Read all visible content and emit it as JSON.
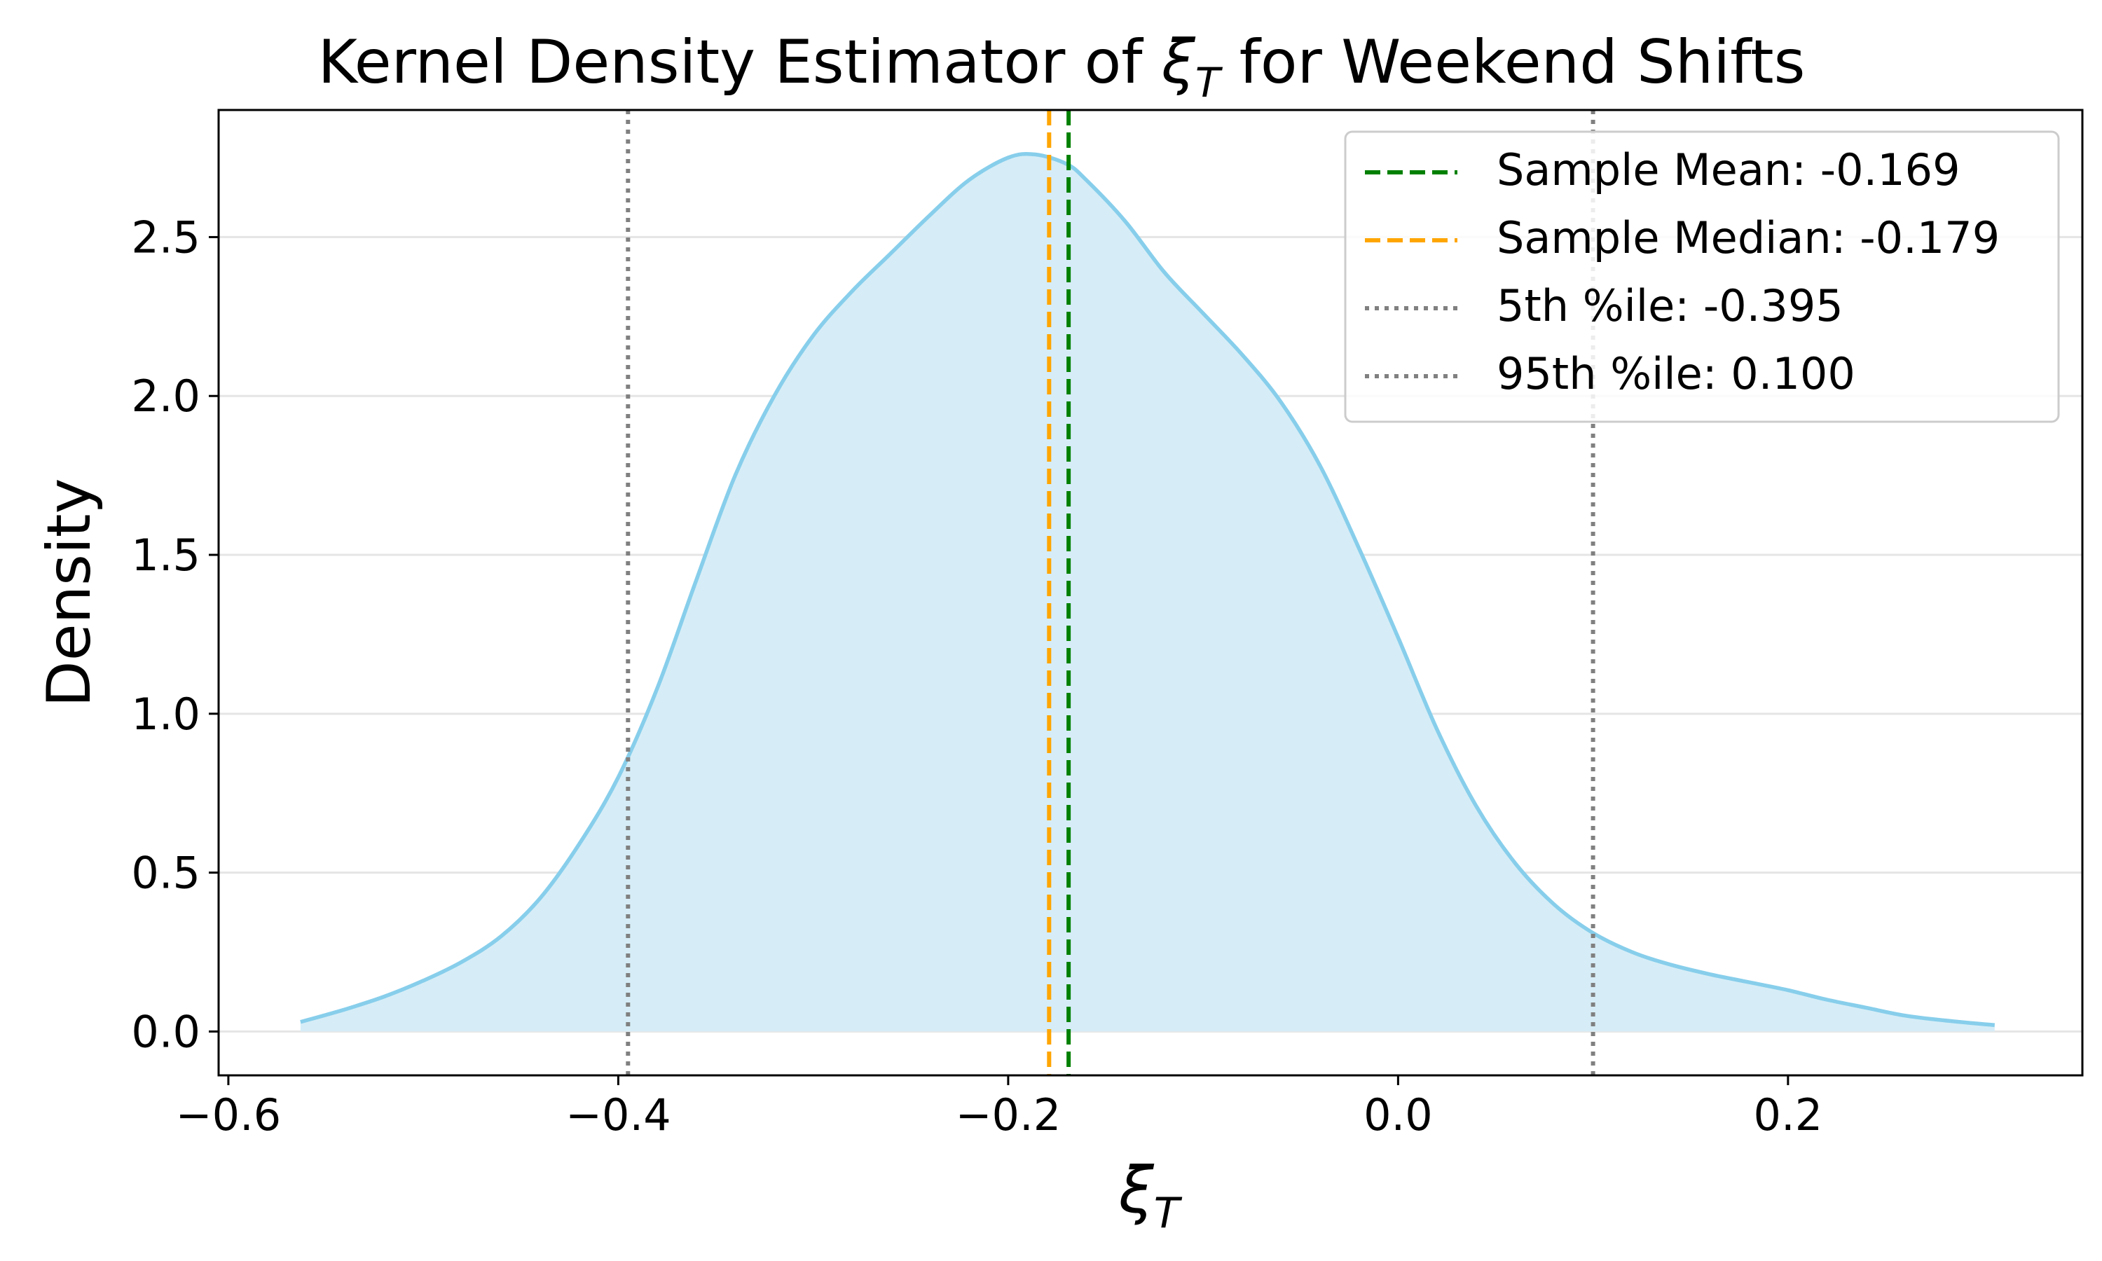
{
  "chart_data": {
    "type": "area",
    "title": {
      "prefix": "Kernel Density Estimator of ",
      "symbol": "ξ",
      "subscript": "T",
      "suffix": " for Weekend Shifts"
    },
    "xlabel": {
      "symbol": "ξ",
      "subscript": "T"
    },
    "ylabel": "Density",
    "xlim": [
      -0.605,
      0.351
    ],
    "ylim": [
      -0.138,
      2.9
    ],
    "xticks": [
      -0.6,
      -0.4,
      -0.2,
      0.0,
      0.2
    ],
    "xtick_labels": [
      "−0.6",
      "−0.4",
      "−0.2",
      "0.0",
      "0.2"
    ],
    "yticks": [
      0.0,
      0.5,
      1.0,
      1.5,
      2.0,
      2.5
    ],
    "ytick_labels": [
      "0.0",
      "0.5",
      "1.0",
      "1.5",
      "2.0",
      "2.5"
    ],
    "grid": "horizontal",
    "legend_position": "upper right",
    "kde": {
      "x": [
        -0.563,
        -0.54,
        -0.52,
        -0.5,
        -0.48,
        -0.46,
        -0.44,
        -0.42,
        -0.4,
        -0.38,
        -0.36,
        -0.34,
        -0.32,
        -0.3,
        -0.28,
        -0.26,
        -0.24,
        -0.22,
        -0.2,
        -0.186,
        -0.17,
        -0.16,
        -0.14,
        -0.12,
        -0.1,
        -0.08,
        -0.06,
        -0.04,
        -0.02,
        0.0,
        0.02,
        0.04,
        0.06,
        0.08,
        0.1,
        0.12,
        0.14,
        0.16,
        0.18,
        0.2,
        0.22,
        0.24,
        0.26,
        0.28,
        0.306
      ],
      "y": [
        0.03,
        0.07,
        0.11,
        0.16,
        0.22,
        0.3,
        0.42,
        0.59,
        0.8,
        1.08,
        1.42,
        1.75,
        2.0,
        2.19,
        2.33,
        2.45,
        2.57,
        2.68,
        2.75,
        2.76,
        2.73,
        2.68,
        2.55,
        2.39,
        2.26,
        2.13,
        1.98,
        1.78,
        1.52,
        1.24,
        0.95,
        0.71,
        0.53,
        0.4,
        0.31,
        0.25,
        0.21,
        0.18,
        0.155,
        0.13,
        0.1,
        0.075,
        0.05,
        0.035,
        0.02
      ],
      "line_color": "#87CEEB",
      "fill_color": "#D6EDF7"
    },
    "markers": [
      {
        "name": "mean-line",
        "label": "Sample Mean: -0.169",
        "x": -0.169,
        "color": "#008000",
        "style": "dashed"
      },
      {
        "name": "median-line",
        "label": "Sample Median: -0.179",
        "x": -0.179,
        "color": "#FFA500",
        "style": "dashed"
      },
      {
        "name": "p5-line",
        "label": "5th %ile: -0.395",
        "x": -0.395,
        "color": "#808080",
        "style": "dotted"
      },
      {
        "name": "p95-line",
        "label": "95th %ile: 0.100",
        "x": 0.1,
        "color": "#808080",
        "style": "dotted"
      }
    ]
  }
}
